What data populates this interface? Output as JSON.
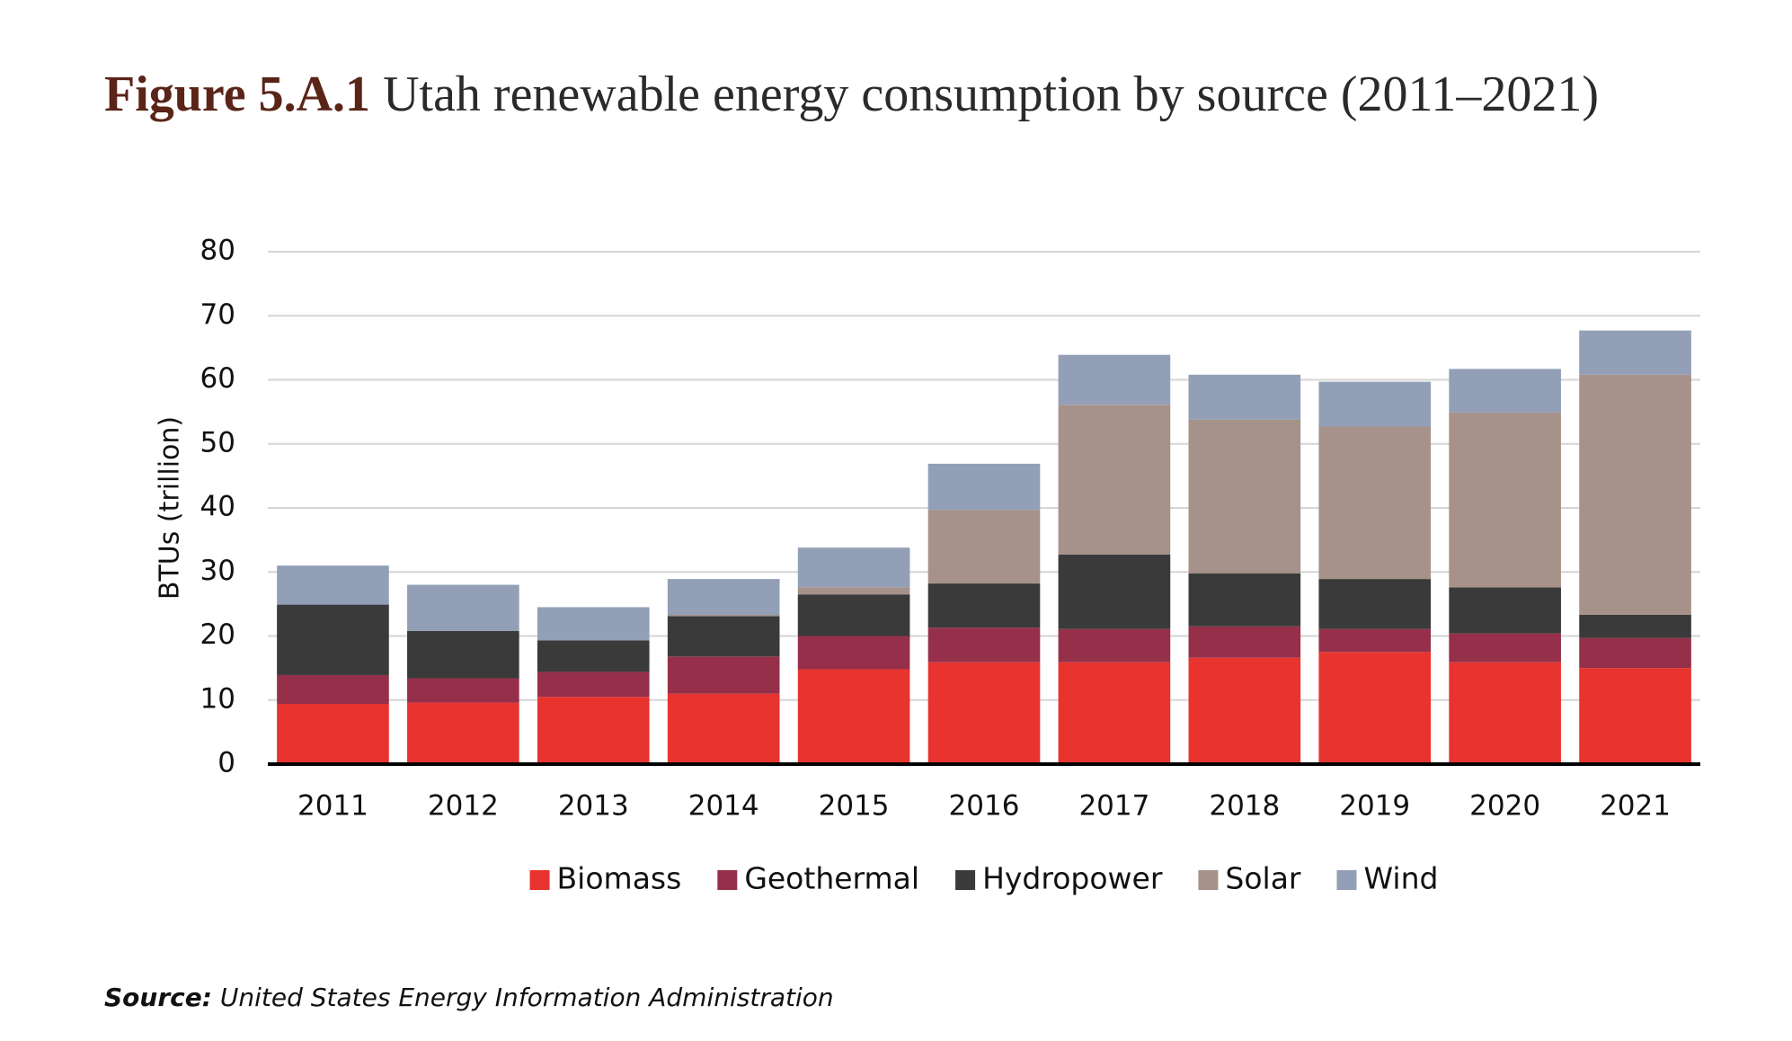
{
  "chart_data": {
    "type": "stacked_bar",
    "title_prefix": "Figure 5.A.1",
    "title": "Utah renewable energy consumption by source (2011–2021)",
    "y_label": "BTUs (trillion)",
    "source_label": "Source:",
    "source": "United States Energy Information Administration",
    "categories": [
      "2011",
      "2012",
      "2013",
      "2014",
      "2015",
      "2016",
      "2017",
      "2018",
      "2019",
      "2020",
      "2021"
    ],
    "series": [
      {
        "name": "Biomass",
        "color": "#e8332f",
        "values": [
          9.4,
          9.6,
          10.5,
          11.0,
          14.8,
          15.9,
          15.9,
          16.6,
          17.5,
          15.9,
          15.0
        ]
      },
      {
        "name": "Geothermal",
        "color": "#96304a",
        "values": [
          4.5,
          3.8,
          3.9,
          5.8,
          5.2,
          5.4,
          5.2,
          4.9,
          3.6,
          4.5,
          4.7
        ]
      },
      {
        "name": "Hydropower",
        "color": "#3a3a3a",
        "values": [
          11.0,
          7.4,
          4.9,
          6.3,
          6.5,
          6.9,
          11.6,
          8.3,
          7.8,
          7.2,
          3.6
        ]
      },
      {
        "name": "Solar",
        "color": "#a6928a",
        "values": [
          0,
          0,
          0,
          0.2,
          1.1,
          11.5,
          23.4,
          24.0,
          23.8,
          27.3,
          37.5
        ]
      },
      {
        "name": "Wind",
        "color": "#929fb6",
        "values": [
          6.1,
          7.2,
          5.2,
          5.6,
          6.2,
          7.2,
          7.8,
          7.0,
          7.0,
          6.8,
          6.9
        ]
      }
    ],
    "ylim": [
      0,
      80
    ],
    "yticks": [
      0,
      10,
      20,
      30,
      40,
      50,
      60,
      70,
      80
    ],
    "grid": true,
    "legend": "bottom"
  }
}
